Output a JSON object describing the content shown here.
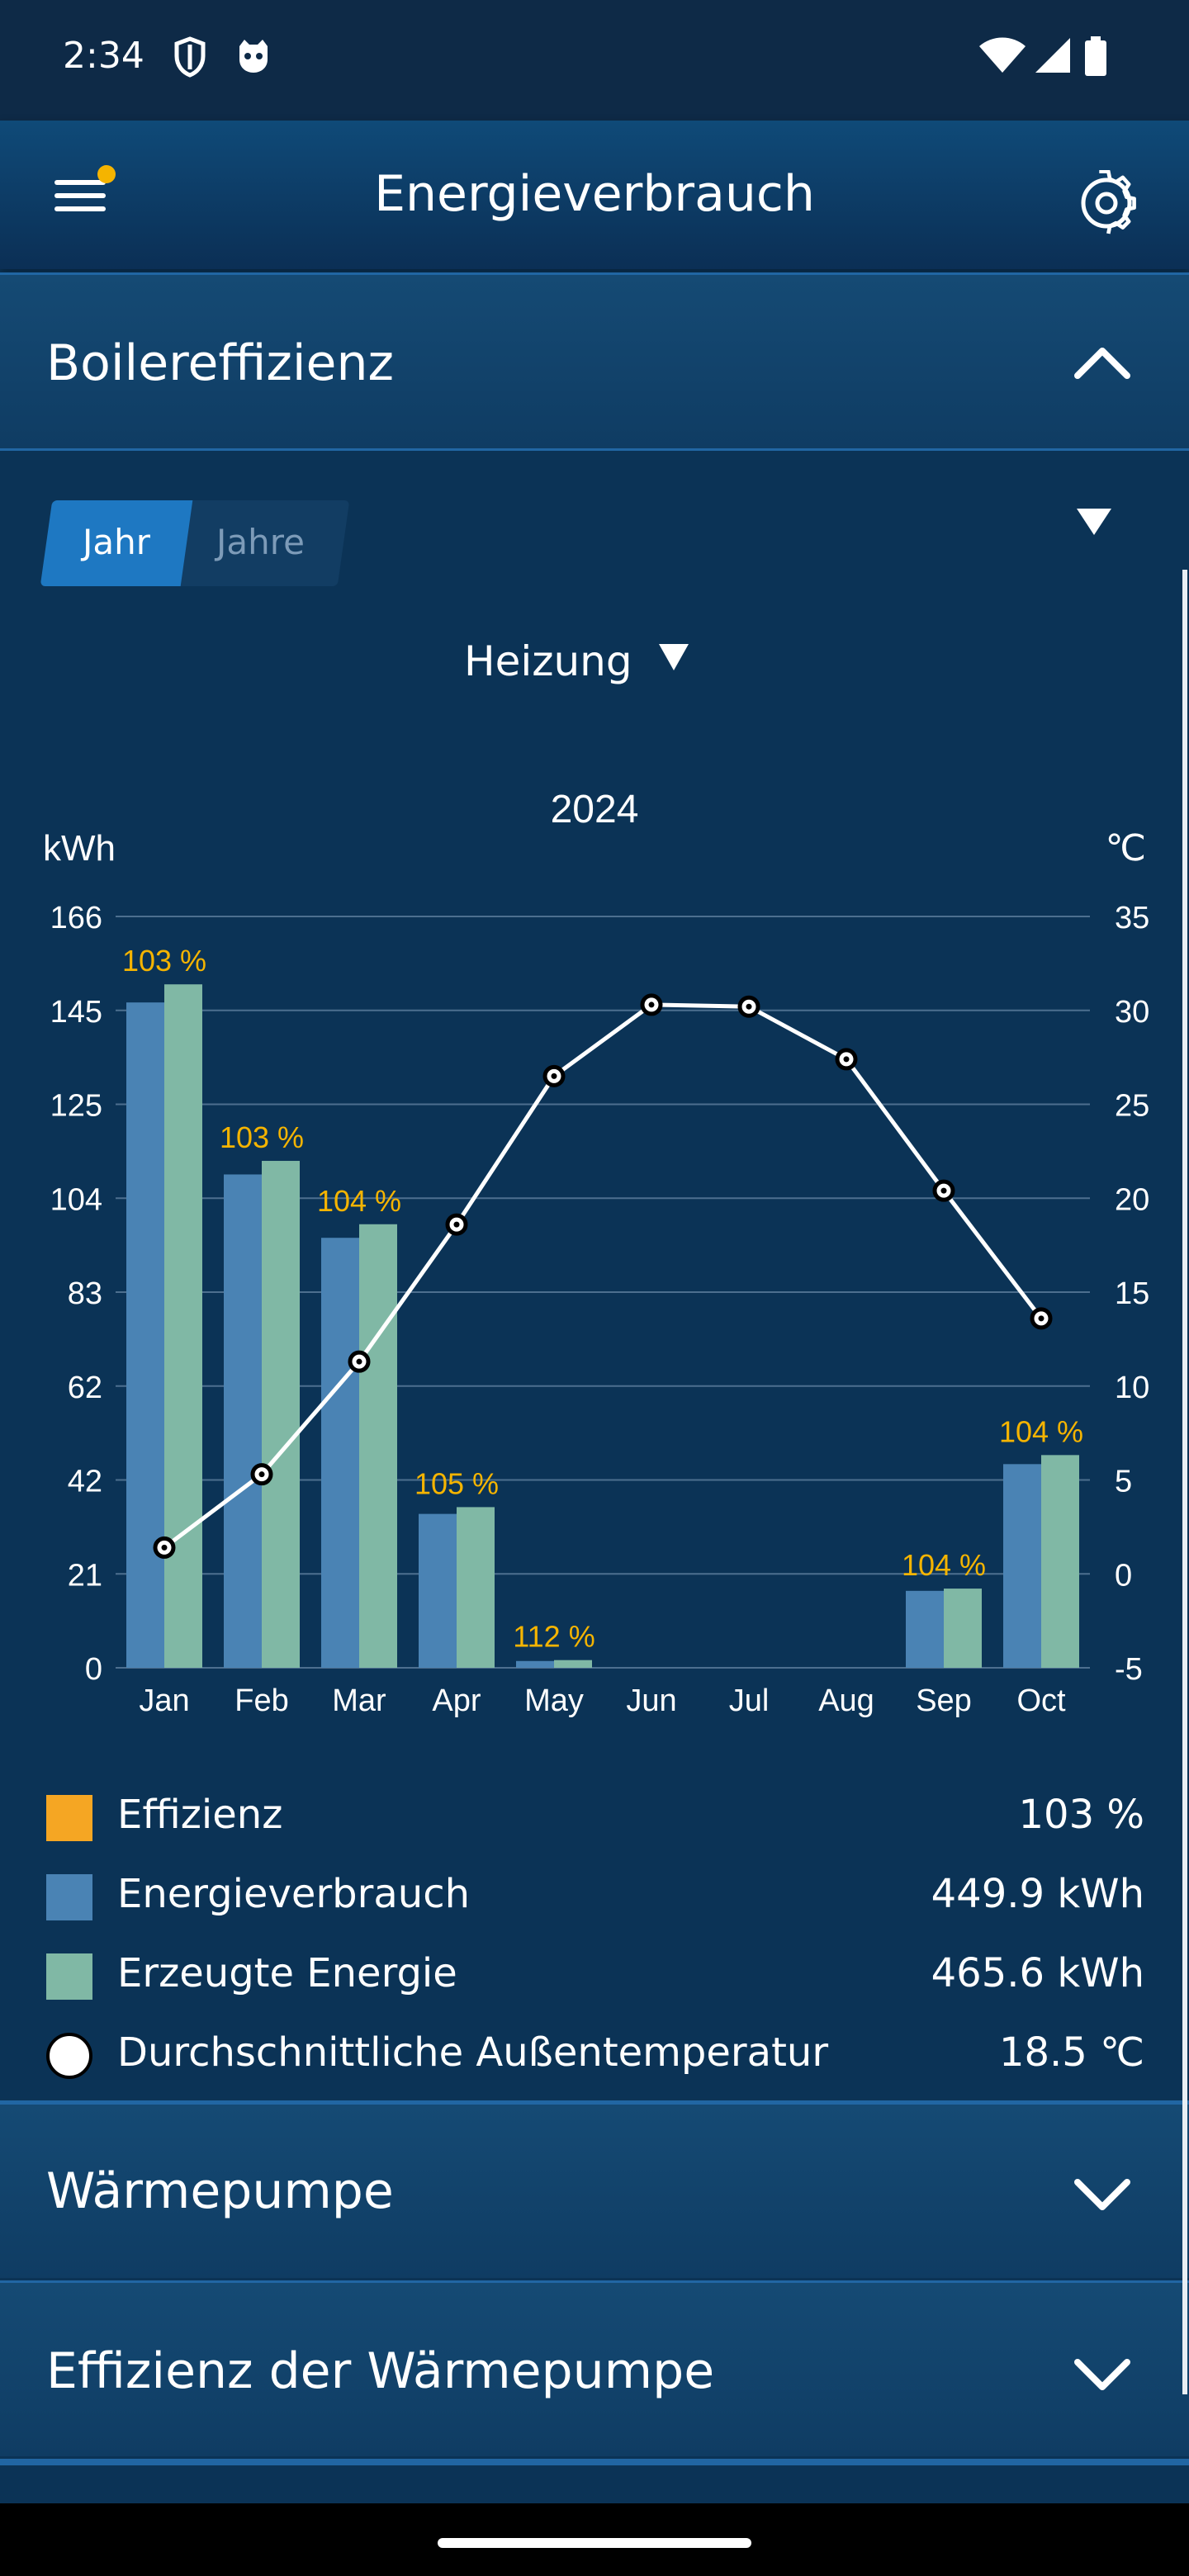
{
  "status_bar": {
    "time": "2:34"
  },
  "app_bar": {
    "title": "Energieverbrauch"
  },
  "sections": {
    "boiler": {
      "title": "Boilereffizienz"
    },
    "heat_pump": {
      "title": "Wärmepumpe"
    },
    "heat_pump_efficiency": {
      "title": "Effizienz der Wärmepumpe"
    }
  },
  "toggle": {
    "active": "Jahr",
    "inactive": "Jahre"
  },
  "filter": {
    "selected": "Heizung"
  },
  "chart_data": {
    "type": "bar",
    "title": "2024",
    "ylabel": "kWh",
    "y2label": "℃",
    "ylim": [
      0,
      166
    ],
    "y2lim": [
      -5,
      35
    ],
    "y_ticks": [
      "166",
      "145",
      "125",
      "104",
      "83",
      "62",
      "42",
      "21",
      "0"
    ],
    "y2_ticks": [
      "35",
      "30",
      "25",
      "20",
      "15",
      "10",
      "5",
      "0",
      "-5"
    ],
    "categories": [
      "Jan",
      "Feb",
      "Mar",
      "Apr",
      "May",
      "Jun",
      "Jul",
      "Aug",
      "Sep",
      "Oct"
    ],
    "series": [
      {
        "name": "Energieverbrauch",
        "type": "bar",
        "color": "#4a83b4",
        "values": [
          147,
          109,
          95,
          34,
          1.5,
          0,
          0,
          0,
          17,
          45
        ]
      },
      {
        "name": "Erzeugte Energie",
        "type": "bar",
        "color": "#80b8a5",
        "values": [
          151,
          112,
          98,
          35.5,
          1.7,
          0,
          0,
          0,
          17.5,
          47
        ]
      },
      {
        "name": "Durchschnittliche Außentemperatur",
        "type": "line",
        "axis": "right",
        "color": "#ffffff",
        "values": [
          1.4,
          5.3,
          11.3,
          18.6,
          26.5,
          30.3,
          30.2,
          27.4,
          20.4,
          13.6
        ]
      }
    ],
    "efficiency_labels": [
      "103 %",
      "103 %",
      "104 %",
      "105 %",
      "112 %",
      "",
      "",
      "",
      "104 %",
      "104 %"
    ],
    "grid": true
  },
  "legend": [
    {
      "label": "Effizienz",
      "value": "103 %",
      "color": "#f5a623",
      "shape": "square"
    },
    {
      "label": "Energieverbrauch",
      "value": "449.9 kWh",
      "color": "#4a83b4",
      "shape": "square"
    },
    {
      "label": "Erzeugte Energie",
      "value": "465.6 kWh",
      "color": "#80b8a5",
      "shape": "square"
    },
    {
      "label": "Durchschnittliche Außentemperatur",
      "value": "18.5 ℃",
      "color": "#ffffff",
      "shape": "circle"
    }
  ],
  "icons": {
    "menu": "hamburger-icon",
    "settings": "gear-icon",
    "collapse": "chevron-up-icon",
    "expand": "chevron-down-icon"
  }
}
